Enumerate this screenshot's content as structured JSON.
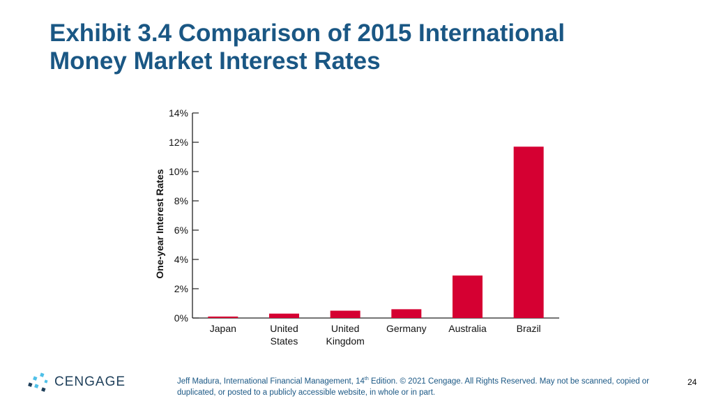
{
  "slide": {
    "title_line1": "Exhibit 3.4 Comparison of 2015 International",
    "title_line2": "Money Market Interest Rates",
    "logo_text": "CENGAGE",
    "footer_before_sup": "Jeff Madura, International Financial Management, 14",
    "footer_sup": "th",
    "footer_after_sup": " Edition. © 2021 Cengage. All Rights Reserved. May not be scanned, copied or duplicated, or posted to a publicly accessible website, in whole or in part.",
    "page_number": "24"
  },
  "chart_data": {
    "type": "bar",
    "categories": [
      [
        "Japan"
      ],
      [
        "United",
        "States"
      ],
      [
        "United",
        "Kingdom"
      ],
      [
        "Germany"
      ],
      [
        "Australia"
      ],
      [
        "Brazil"
      ]
    ],
    "values": [
      0.1,
      0.3,
      0.5,
      0.6,
      2.9,
      11.7
    ],
    "ylabel": "One-year Interest Rates",
    "ylim": [
      0,
      14
    ],
    "yticks": [
      0,
      2,
      4,
      6,
      8,
      10,
      12,
      14
    ],
    "ytick_suffix": "%",
    "bar_color": "#d50032",
    "grid": false
  },
  "colors": {
    "title": "#1a5784",
    "footer": "#1a5784",
    "logo_text": "#1e3f5a",
    "logo_accent": "#4fc0e8"
  },
  "icons": {
    "logo": "cengage-logo-icon"
  }
}
